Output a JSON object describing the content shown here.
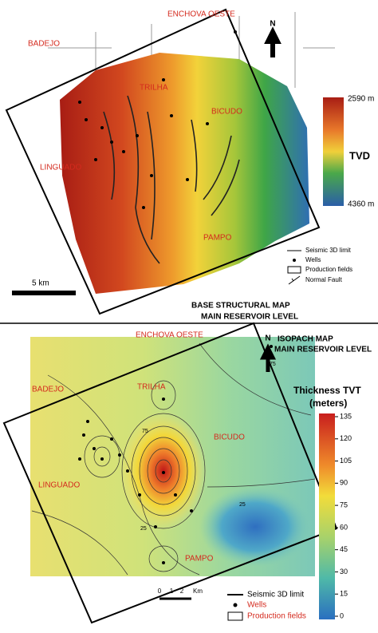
{
  "top_map": {
    "title": "BASE STRUCTURAL MAP",
    "subtitle": "MAIN RESERVOIR LEVEL",
    "north": "N",
    "fields": [
      "ENCHOVA OESTE",
      "BADEJO",
      "TRILHA",
      "BICUDO",
      "LINGUADO",
      "PAMPO"
    ],
    "colorbar": {
      "top": "2590 m",
      "label": "TVD",
      "bottom": "4360 m"
    },
    "legend": [
      "Seismic 3D limit",
      "Wells",
      "Production fields",
      "Normal Fault"
    ],
    "scale": "5 km"
  },
  "bottom_map": {
    "title": "ISOPACH MAP",
    "subtitle": "MAIN RESERVOIR LEVEL",
    "north": "N",
    "fields": [
      "ENCHOVA OESTE",
      "BADEJO",
      "TRILHA",
      "BICUDO",
      "LINGUADO",
      "PAMPO"
    ],
    "colorbar": {
      "title": "Thickness TVT",
      "unit": "(meters)",
      "range": [
        0,
        135
      ],
      "ticks": [
        0,
        15,
        30,
        45,
        60,
        75,
        90,
        105,
        120,
        135
      ]
    },
    "contour_labels": [
      "75",
      "25",
      "75",
      "25"
    ],
    "legend": [
      "Seismic 3D limit",
      "Wells",
      "Production fields"
    ],
    "scale": [
      "0",
      "1",
      "2",
      "Km"
    ]
  }
}
